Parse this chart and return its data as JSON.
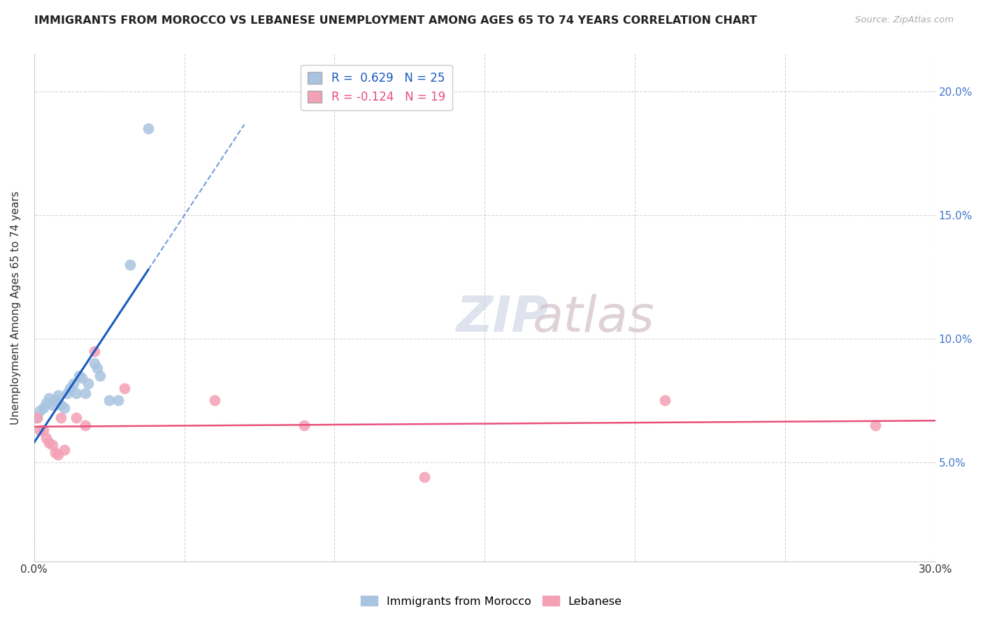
{
  "title": "IMMIGRANTS FROM MOROCCO VS LEBANESE UNEMPLOYMENT AMONG AGES 65 TO 74 YEARS CORRELATION CHART",
  "source": "Source: ZipAtlas.com",
  "ylabel": "Unemployment Among Ages 65 to 74 years",
  "xlim": [
    0.0,
    0.3
  ],
  "ylim": [
    0.01,
    0.215
  ],
  "xticks": [
    0.0,
    0.05,
    0.1,
    0.15,
    0.2,
    0.25,
    0.3
  ],
  "xtick_labels": [
    "0.0%",
    "",
    "",
    "",
    "",
    "",
    "30.0%"
  ],
  "yticks": [
    0.05,
    0.1,
    0.15,
    0.2
  ],
  "ytick_labels": [
    "5.0%",
    "10.0%",
    "15.0%",
    "20.0%"
  ],
  "morocco_R": 0.629,
  "morocco_N": 25,
  "lebanese_R": -0.124,
  "lebanese_N": 19,
  "morocco_color": "#a8c4e0",
  "lebanese_color": "#f4a0b5",
  "morocco_line_color": "#1a5bbf",
  "lebanese_line_color": "#e8507a",
  "grid_color": "#cccccc",
  "background_color": "#ffffff",
  "morocco_x": [
    0.001,
    0.002,
    0.003,
    0.004,
    0.005,
    0.006,
    0.007,
    0.008,
    0.009,
    0.01,
    0.011,
    0.012,
    0.013,
    0.014,
    0.015,
    0.016,
    0.017,
    0.018,
    0.02,
    0.021,
    0.022,
    0.025,
    0.028,
    0.032,
    0.038
  ],
  "morocco_y": [
    0.068,
    0.071,
    0.072,
    0.074,
    0.076,
    0.073,
    0.075,
    0.077,
    0.073,
    0.072,
    0.078,
    0.08,
    0.082,
    0.078,
    0.085,
    0.084,
    0.078,
    0.082,
    0.09,
    0.088,
    0.085,
    0.075,
    0.075,
    0.13,
    0.185
  ],
  "lebanese_x": [
    0.001,
    0.002,
    0.003,
    0.004,
    0.005,
    0.006,
    0.007,
    0.008,
    0.009,
    0.01,
    0.014,
    0.017,
    0.02,
    0.03,
    0.06,
    0.09,
    0.13,
    0.21,
    0.28
  ],
  "lebanese_y": [
    0.068,
    0.063,
    0.063,
    0.06,
    0.058,
    0.057,
    0.054,
    0.053,
    0.068,
    0.055,
    0.068,
    0.065,
    0.095,
    0.08,
    0.075,
    0.065,
    0.044,
    0.075,
    0.065
  ]
}
